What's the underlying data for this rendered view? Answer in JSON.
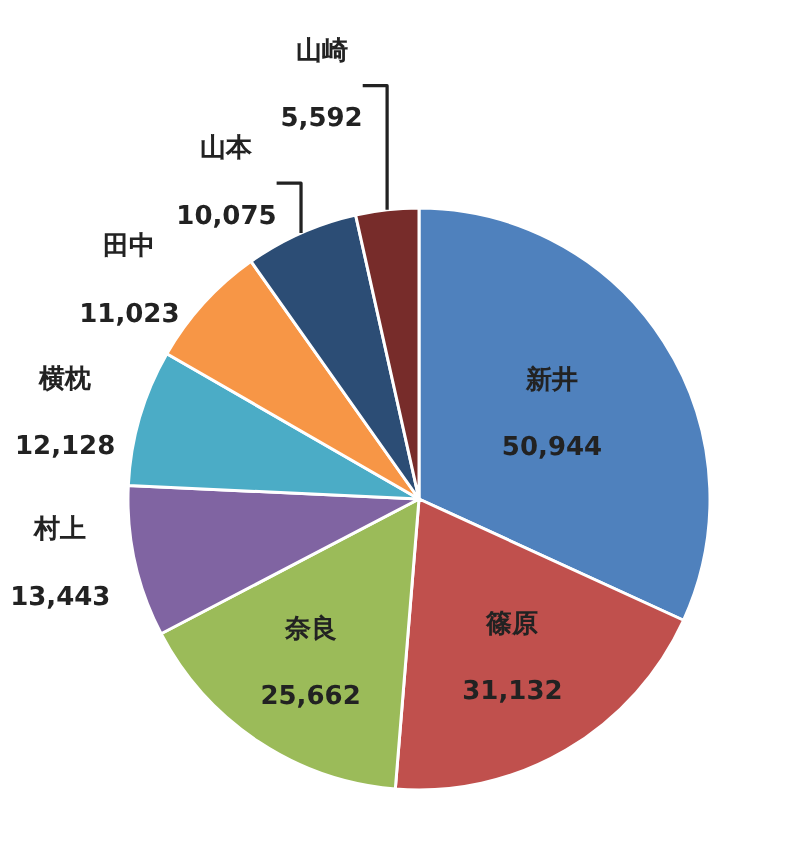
{
  "chart_data": {
    "type": "pie",
    "categories": [
      "新井",
      "篠原",
      "奈良",
      "村上",
      "横枕",
      "田中",
      "山本",
      "山崎"
    ],
    "values": [
      50944,
      31132,
      25662,
      13443,
      12128,
      11023,
      10075,
      5592
    ],
    "value_labels": [
      "50,944",
      "31,132",
      "25,662",
      "13,443",
      "12,128",
      "11,023",
      "10,075",
      "5,592"
    ],
    "colors": [
      "#4f81bd",
      "#c0504d",
      "#9bbb59",
      "#8064a2",
      "#4bacc6",
      "#f79646",
      "#2c4d75",
      "#772c2a"
    ],
    "legend": false
  }
}
